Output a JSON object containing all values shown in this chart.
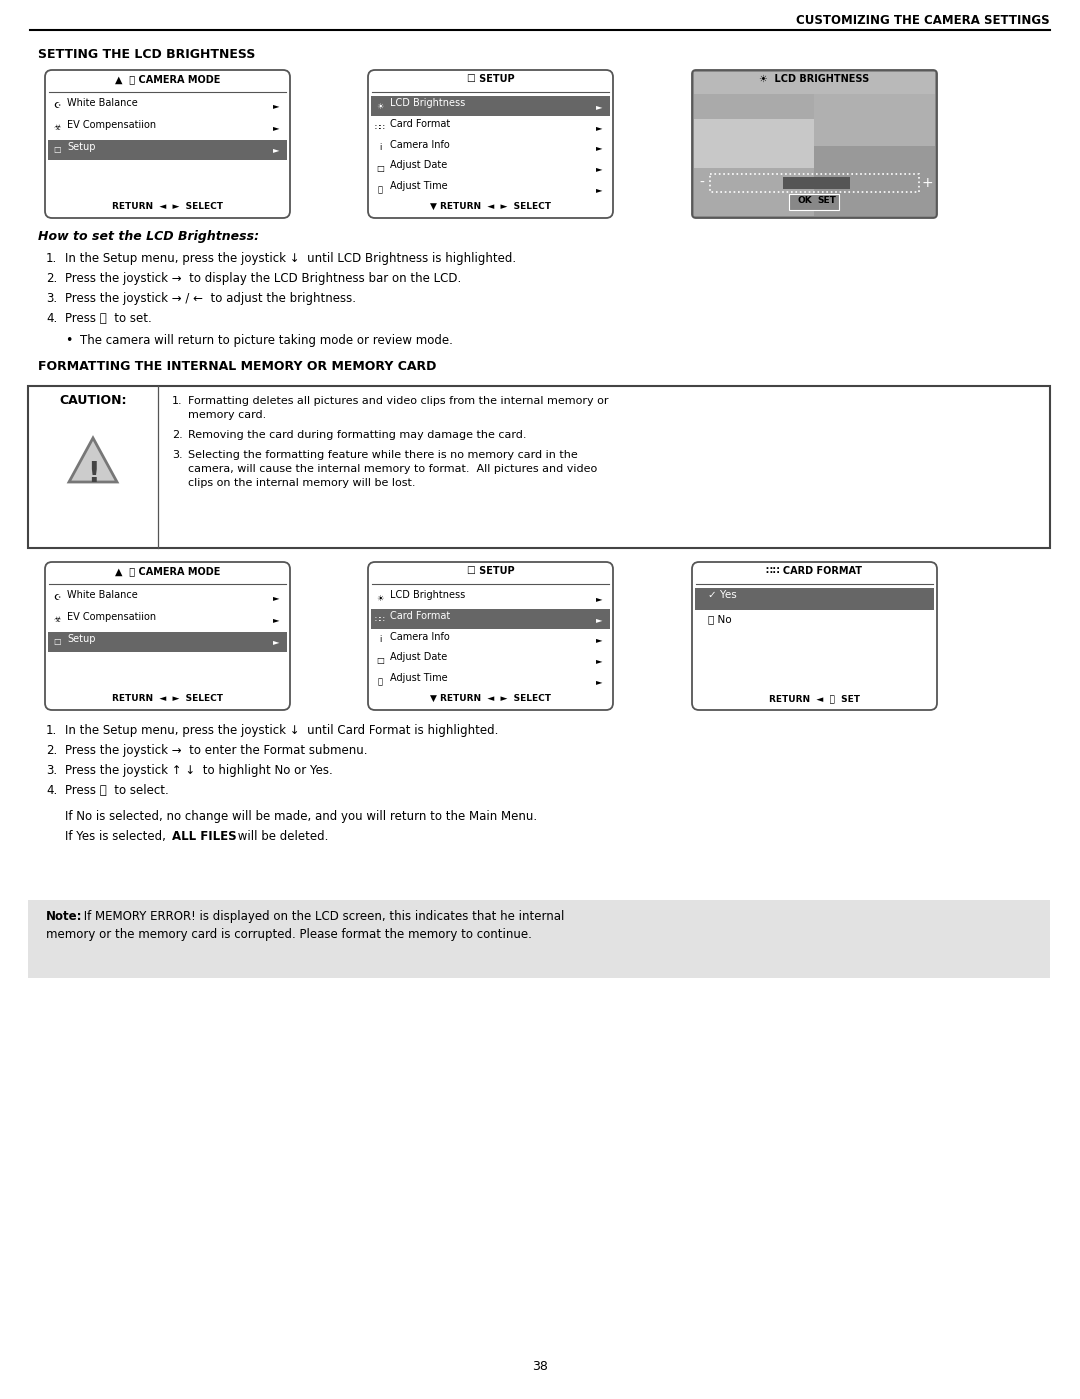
{
  "page_number": "38",
  "header_text": "CUSTOMIZING THE CAMERA SETTINGS",
  "bg_color": "#ffffff",
  "section1_title": "SETTING THE LCD BRIGHTNESS",
  "section2_title": "FORMATTING THE INTERNAL MEMORY OR MEMORY CARD",
  "menu1_items": [
    "White Balance",
    "EV Compensatiion",
    "Setup"
  ],
  "menu2_items": [
    "LCD Brightness",
    "Card Format",
    "Camera Info",
    "Adjust Date",
    "Adjust Time"
  ],
  "how_to_title": "How to set the LCD Brightness:",
  "how_to_steps": [
    "In the Setup menu, press the joystick ↓  until LCD Brightness is highlighted.",
    "Press the joystick →  to display the LCD Brightness bar on the LCD.",
    "Press the joystick → / ←  to adjust the brightness.",
    "Press ⓪  to set."
  ],
  "bullet_note": "The camera will return to picture taking mode or review mode.",
  "caution_items": [
    "Formatting deletes all pictures and video clips from the internal memory or memory card.",
    "Removing the card during formatting may damage the card.",
    "Selecting the formatting feature while there is no memory card in the camera, will cause the internal memory to format.  All pictures and video clips on the internal memory will be lost."
  ],
  "format_steps": [
    "In the Setup menu, press the joystick ↓  until Card Format is highlighted.",
    "Press the joystick →  to enter the Format submenu.",
    "Press the joystick ↑ ↓  to highlight No or Yes.",
    "Press ⓪  to select."
  ],
  "format_note1": "If No is selected, no change will be made, and you will return to the Main Menu.",
  "format_note2_pre": "If Yes is selected, ",
  "format_note2_bold": "ALL FILES",
  "format_note2_post": " will be deleted.",
  "note_bold": "Note:",
  "note_text": " If MEMORY ERROR! is displayed on the LCD screen, this indicates that he internal",
  "note_text2": "memory or the memory card is corrupted. Please format the memory to continue.",
  "highlight_bg": "#666666",
  "note_bg": "#e2e2e2",
  "menu_border": "#444444"
}
